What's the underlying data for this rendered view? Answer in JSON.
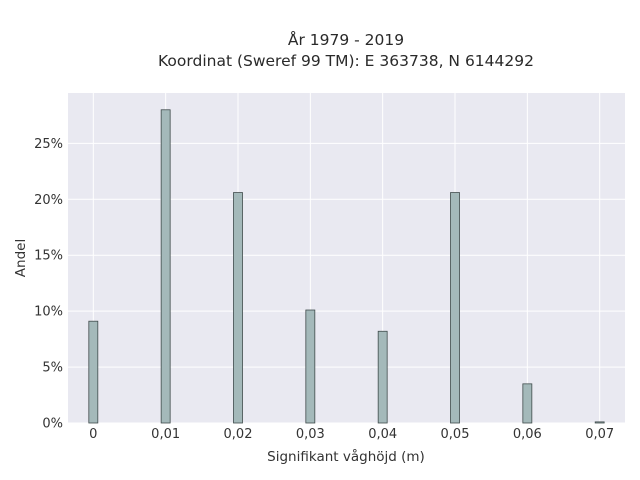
{
  "chart_data": {
    "type": "bar",
    "title": "År 1979 - 2019",
    "subtitle": "Koordinat (Sweref 99 TM): E 363738, N 6144292",
    "xlabel": "Signifikant våghöjd (m)",
    "ylabel": "Andel",
    "x": [
      0,
      0.01,
      0.02,
      0.03,
      0.04,
      0.05,
      0.06,
      0.07
    ],
    "x_tick_labels": [
      "0",
      "0,01",
      "0,02",
      "0,03",
      "0,04",
      "0,05",
      "0,06",
      "0,07"
    ],
    "values": [
      9.1,
      28.0,
      20.6,
      10.1,
      8.2,
      20.6,
      3.5,
      0.1
    ],
    "y_tick_values": [
      0,
      5,
      10,
      15,
      20,
      25
    ],
    "y_tick_labels": [
      "0%",
      "5%",
      "10%",
      "15%",
      "20%",
      "25%"
    ],
    "xlim": [
      -0.0035,
      0.0735
    ],
    "ylim": [
      0,
      29.5
    ],
    "grid": true,
    "colors": {
      "plot_background": "#e9e9f1",
      "grid": "#ffffff",
      "bar_fill": "#a4b9ba",
      "bar_stroke": "#3f4b4b"
    }
  }
}
